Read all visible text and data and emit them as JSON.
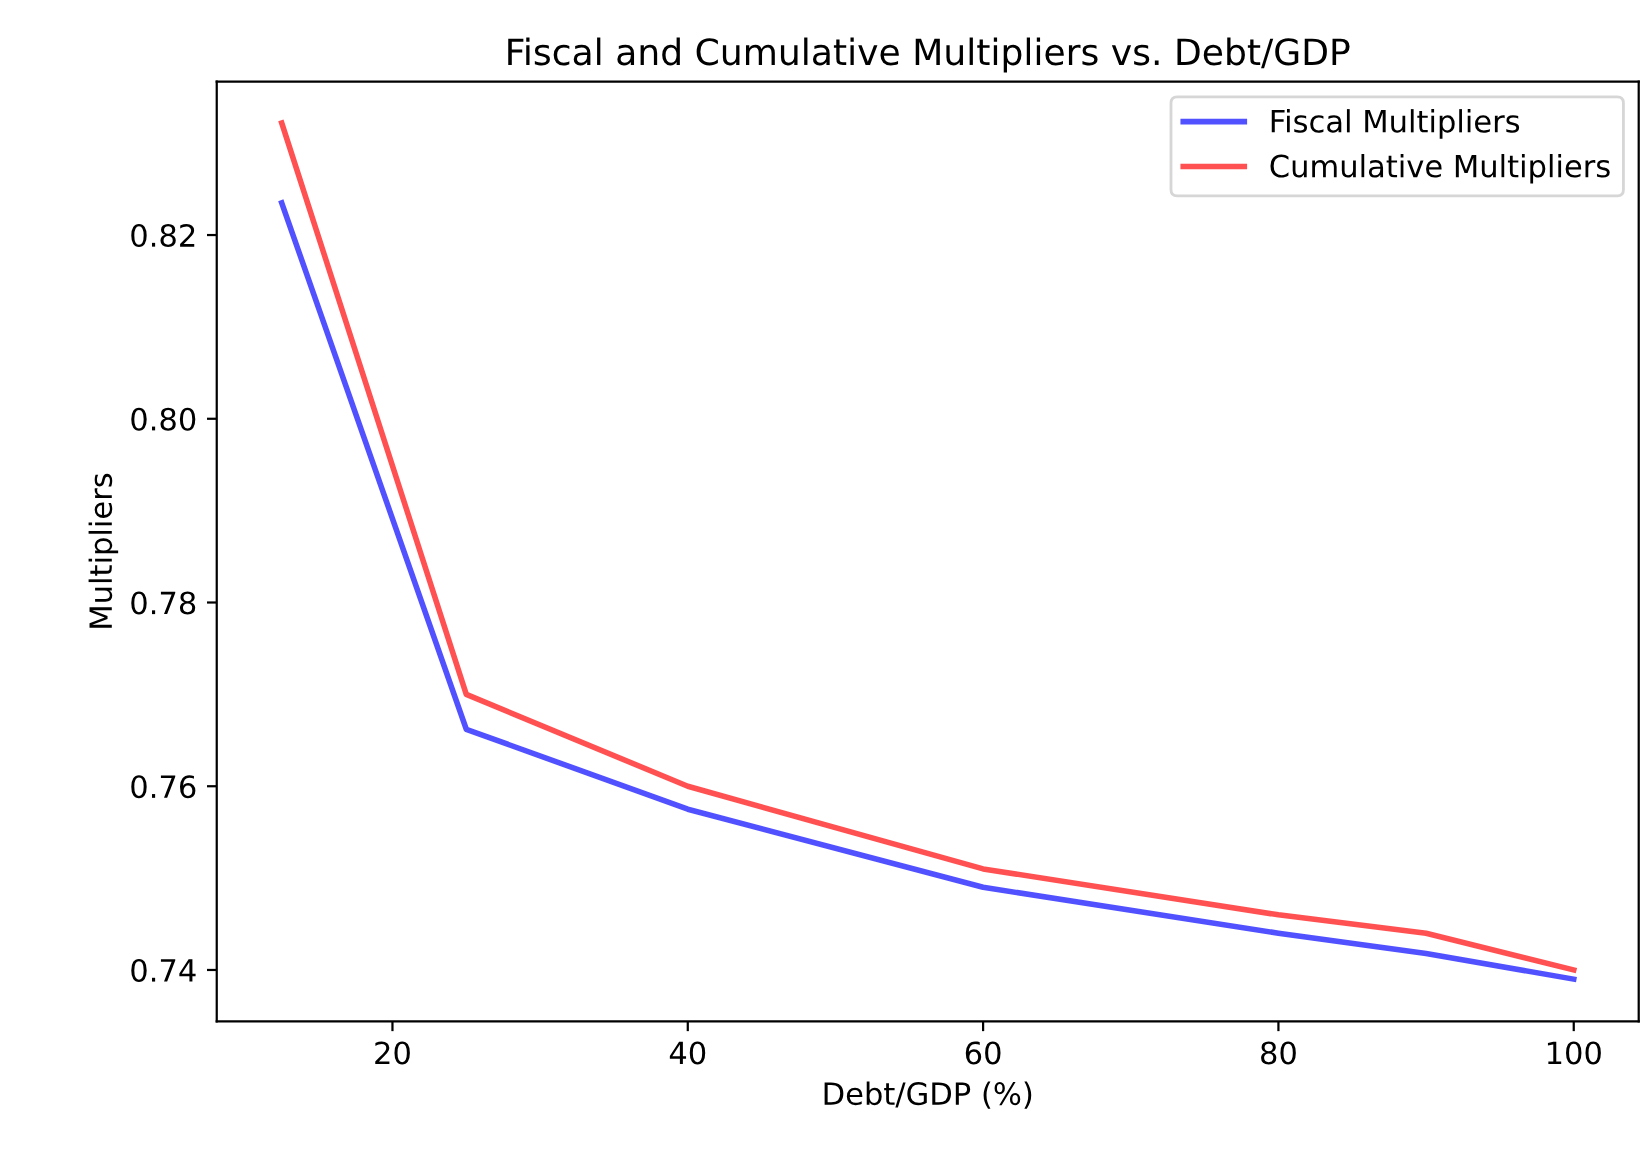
{
  "chart_data": {
    "type": "line",
    "title": "Fiscal and Cumulative Multipliers vs. Debt/GDP",
    "xlabel": "Debt/GDP (%)",
    "ylabel": "Multipliers",
    "x": [
      12.5,
      25,
      40,
      60,
      80,
      90,
      100
    ],
    "series": [
      {
        "name": "Fiscal Multipliers",
        "color": "#3333ff",
        "values": [
          0.8235,
          0.7662,
          0.7575,
          0.749,
          0.744,
          0.7418,
          0.739
        ]
      },
      {
        "name": "Cumulative Multipliers",
        "color": "#ff3333",
        "values": [
          0.8322,
          0.77,
          0.76,
          0.751,
          0.746,
          0.744,
          0.74
        ]
      }
    ],
    "xlim": [
      8.1,
      104.4
    ],
    "ylim": [
      0.7344,
      0.8367
    ],
    "xticks": [
      20,
      40,
      60,
      80,
      100
    ],
    "yticks": [
      {
        "value": 0.74,
        "label": "0.74"
      },
      {
        "value": 0.76,
        "label": "0.76"
      },
      {
        "value": 0.78,
        "label": "0.78"
      },
      {
        "value": 0.8,
        "label": "0.80"
      },
      {
        "value": 0.82,
        "label": "0.82"
      }
    ],
    "legend": "top right",
    "grid": false,
    "marker": "none",
    "line_style": "solid"
  }
}
